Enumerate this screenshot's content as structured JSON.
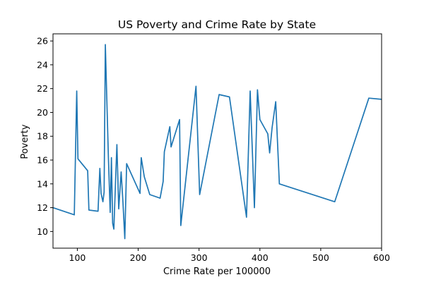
{
  "chart_data": {
    "type": "line",
    "title": "US Poverty and Crime Rate by State",
    "xlabel": "Crime Rate per 100000",
    "ylabel": "Poverty",
    "xlim": [
      60,
      600
    ],
    "ylim": [
      8.6,
      26.6
    ],
    "xticks": [
      100,
      200,
      300,
      400,
      500,
      600
    ],
    "yticks": [
      10,
      12,
      14,
      16,
      18,
      20,
      22,
      24,
      26
    ],
    "grid": false,
    "legend": "none",
    "series": [
      {
        "color": "#1f77b4",
        "points": [
          [
            60,
            12.0
          ],
          [
            95,
            11.4
          ],
          [
            99,
            21.8
          ],
          [
            101,
            16.1
          ],
          [
            117,
            15.1
          ],
          [
            119,
            11.8
          ],
          [
            134,
            11.7
          ],
          [
            137,
            15.3
          ],
          [
            139,
            13.2
          ],
          [
            142,
            12.5
          ],
          [
            144,
            13.3
          ],
          [
            146,
            25.7
          ],
          [
            151,
            16.3
          ],
          [
            154,
            11.6
          ],
          [
            156,
            16.2
          ],
          [
            158,
            10.7
          ],
          [
            160,
            10.2
          ],
          [
            163,
            14.5
          ],
          [
            165,
            17.3
          ],
          [
            168,
            11.9
          ],
          [
            172,
            15.0
          ],
          [
            175,
            12.4
          ],
          [
            178,
            9.4
          ],
          [
            181,
            15.7
          ],
          [
            203,
            13.2
          ],
          [
            205,
            16.2
          ],
          [
            210,
            14.6
          ],
          [
            219,
            13.1
          ],
          [
            236,
            12.8
          ],
          [
            241,
            14.2
          ],
          [
            243,
            16.7
          ],
          [
            252,
            18.8
          ],
          [
            254,
            17.1
          ],
          [
            268,
            19.4
          ],
          [
            270,
            10.5
          ],
          [
            295,
            22.2
          ],
          [
            301,
            13.1
          ],
          [
            333,
            21.5
          ],
          [
            350,
            21.3
          ],
          [
            378,
            11.2
          ],
          [
            384,
            21.8
          ],
          [
            391,
            12.0
          ],
          [
            396,
            21.9
          ],
          [
            400,
            19.4
          ],
          [
            413,
            18.2
          ],
          [
            416,
            16.6
          ],
          [
            420,
            18.7
          ],
          [
            426,
            20.9
          ],
          [
            432,
            14.0
          ],
          [
            523,
            12.5
          ],
          [
            579,
            21.2
          ],
          [
            600,
            21.1
          ]
        ]
      }
    ]
  }
}
